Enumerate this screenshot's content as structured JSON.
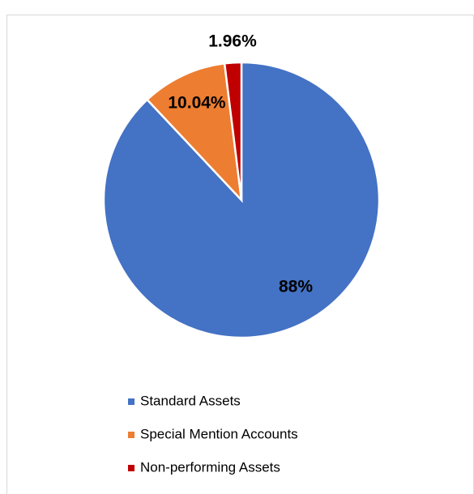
{
  "chart_data": {
    "type": "pie",
    "categories": [
      "Standard Assets",
      "Special Mention Accounts",
      "Non-performing Assets"
    ],
    "values": [
      88,
      10.04,
      1.96
    ],
    "value_labels": [
      "88%",
      "10.04%",
      "1.96%"
    ],
    "colors": [
      "#4472c4",
      "#ed7d31",
      "#c00000"
    ],
    "legend": "bottom"
  }
}
